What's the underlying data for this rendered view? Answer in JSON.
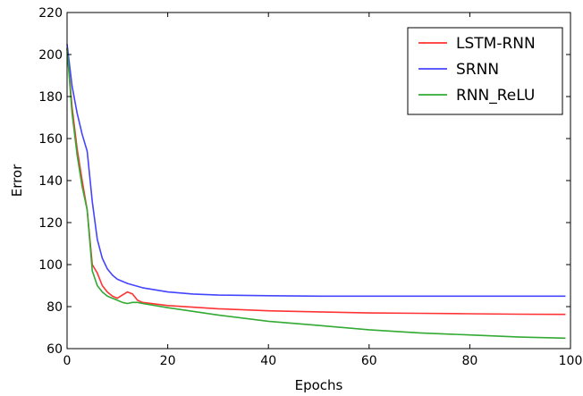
{
  "chart_data": {
    "type": "line",
    "title": "",
    "xlabel": "Epochs",
    "ylabel": "Error",
    "xlim": [
      0,
      100
    ],
    "ylim": [
      60,
      220
    ],
    "xticks": [
      0,
      20,
      40,
      60,
      80,
      100
    ],
    "xtick_labels": [
      "0",
      "20",
      "40",
      "60",
      "80",
      "100"
    ],
    "yticks": [
      60,
      80,
      100,
      120,
      140,
      160,
      180,
      200,
      220
    ],
    "ytick_labels": [
      "60",
      "80",
      "100",
      "120",
      "140",
      "160",
      "180",
      "200",
      "220"
    ],
    "grid": false,
    "legend_position": "top-right",
    "series": [
      {
        "name": "LSTM-RNN",
        "color": "#ff3333",
        "x": [
          0,
          1,
          2,
          3,
          4,
          5,
          6,
          7,
          8,
          9,
          10,
          11,
          12,
          13,
          14,
          15,
          20,
          30,
          40,
          50,
          60,
          70,
          80,
          90,
          99
        ],
        "y": [
          203,
          175,
          155,
          140,
          126,
          100,
          96,
          90,
          87,
          85,
          84,
          85.5,
          87,
          86,
          83,
          82,
          80.5,
          79,
          78,
          77.5,
          77,
          76.8,
          76.6,
          76.4,
          76.3
        ]
      },
      {
        "name": "SRNN",
        "color": "#4444ff",
        "x": [
          0,
          1,
          2,
          3,
          4,
          5,
          6,
          7,
          8,
          9,
          10,
          12,
          15,
          20,
          25,
          30,
          40,
          50,
          60,
          70,
          80,
          90,
          99
        ],
        "y": [
          205,
          185,
          172,
          162,
          154,
          130,
          112,
          103,
          98,
          95,
          93,
          91,
          89,
          87,
          86,
          85.5,
          85.2,
          85,
          85,
          85,
          85,
          85,
          85
        ]
      },
      {
        "name": "RNN_ReLU",
        "color": "#33aa33",
        "x": [
          0,
          1,
          2,
          3,
          4,
          5,
          6,
          7,
          8,
          9,
          10,
          11,
          12,
          13,
          14,
          15,
          20,
          30,
          40,
          50,
          60,
          70,
          80,
          90,
          99
        ],
        "y": [
          203,
          172,
          152,
          137,
          126,
          97,
          90,
          87,
          85,
          84,
          83,
          82,
          81.5,
          82,
          82,
          81.5,
          79.5,
          76,
          73,
          71,
          69,
          67.5,
          66.5,
          65.5,
          65
        ]
      }
    ]
  }
}
